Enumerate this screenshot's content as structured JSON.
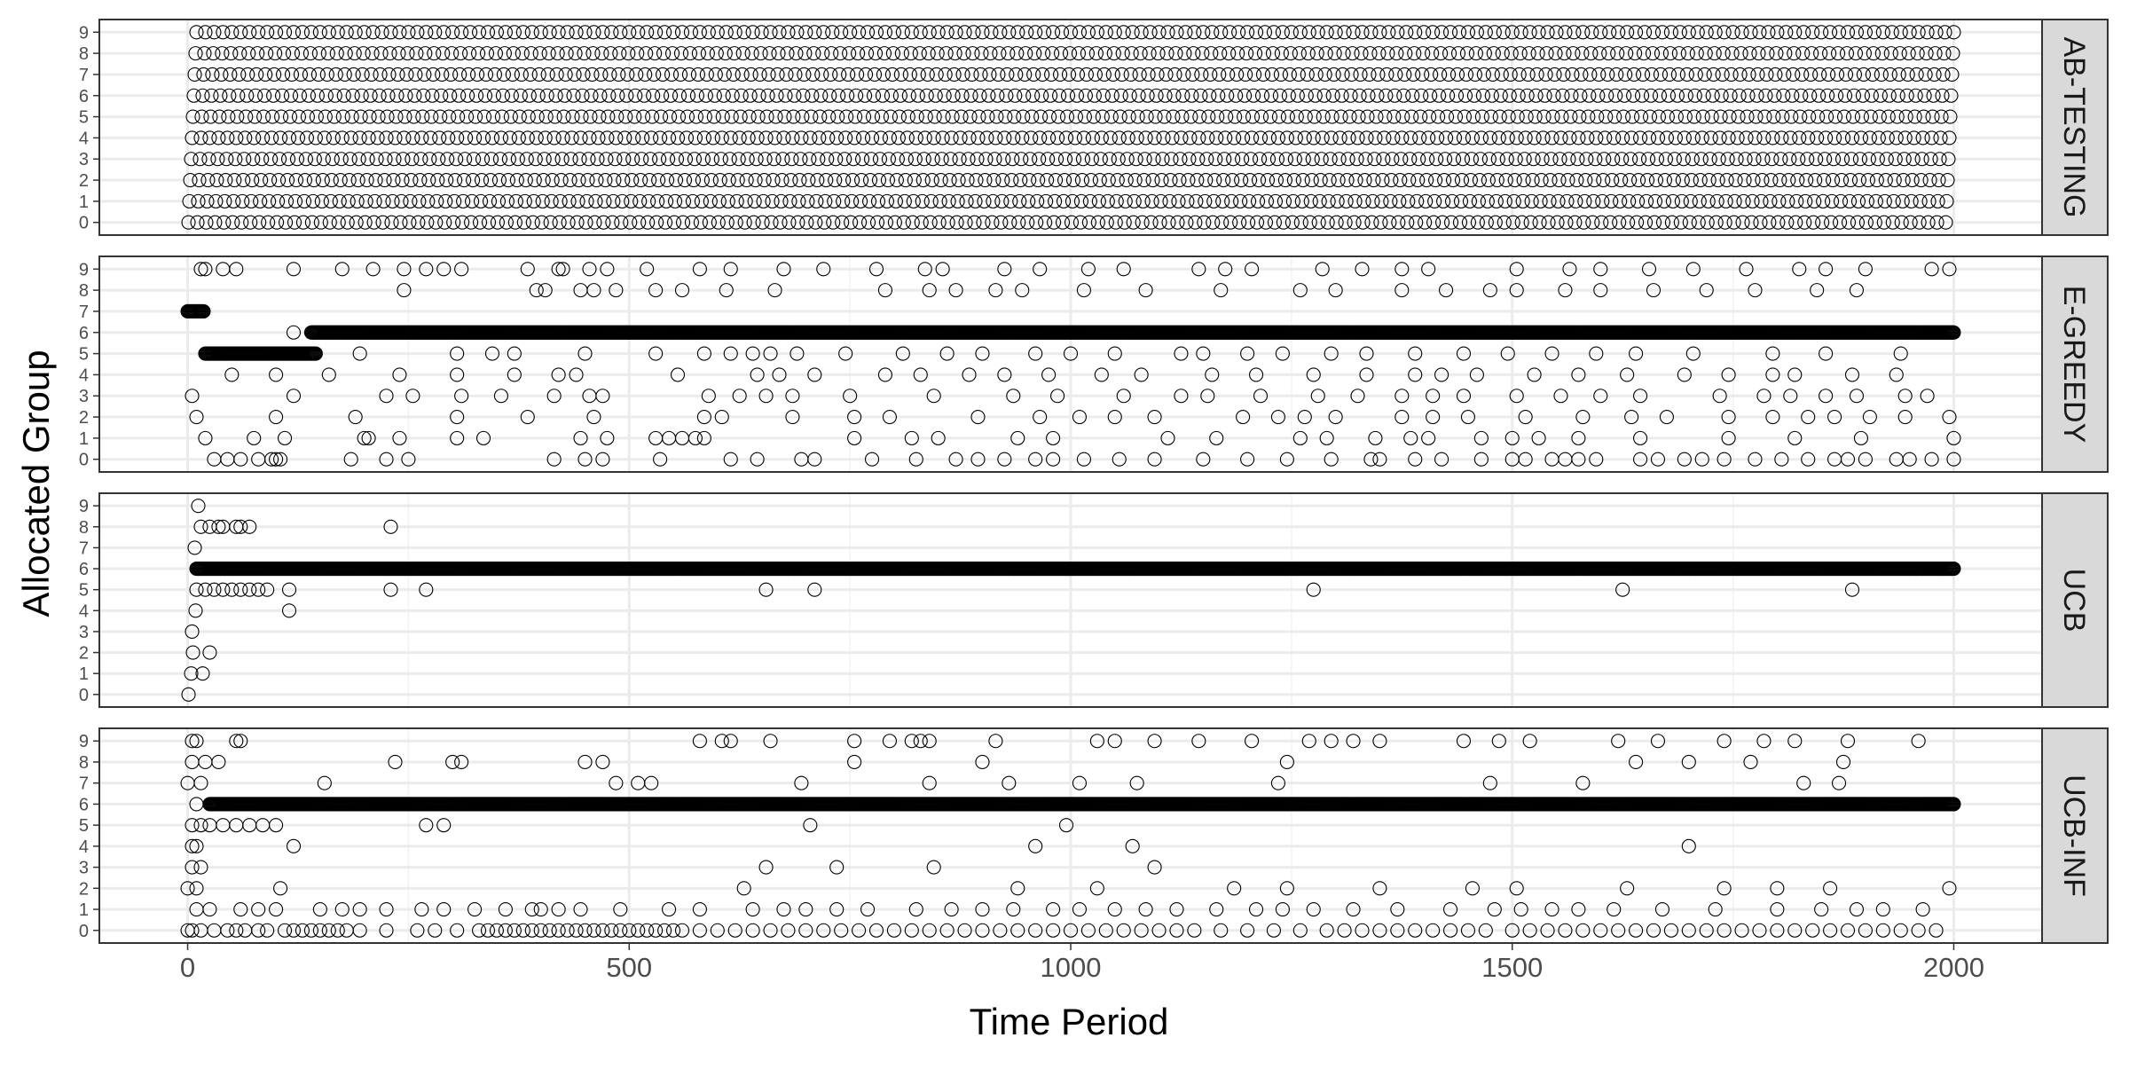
{
  "chart_data": {
    "type": "scatter",
    "title": "",
    "xlabel": "Time Period",
    "ylabel": "Allocated Group",
    "xlim": [
      -100,
      2100
    ],
    "ylim": [
      -0.6,
      9.6
    ],
    "x_ticks": [
      0,
      500,
      1000,
      1500,
      2000
    ],
    "y_ticks": [
      0,
      1,
      2,
      3,
      4,
      5,
      6,
      7,
      8,
      9
    ],
    "grid": true,
    "marker": "open-circle",
    "facets": [
      {
        "name": "AB-TESTING",
        "description_points": "uniform round-robin: every group 0-9 sampled at regular intervals from t=1 to t=2000",
        "points": [
          {
            "group": 0,
            "t_start": 1,
            "t_end": 1991,
            "step": 10
          },
          {
            "group": 1,
            "t_start": 2,
            "t_end": 1992,
            "step": 10
          },
          {
            "group": 2,
            "t_start": 3,
            "t_end": 1993,
            "step": 10
          },
          {
            "group": 3,
            "t_start": 4,
            "t_end": 1994,
            "step": 10
          },
          {
            "group": 4,
            "t_start": 5,
            "t_end": 1995,
            "step": 10
          },
          {
            "group": 5,
            "t_start": 6,
            "t_end": 1996,
            "step": 10
          },
          {
            "group": 6,
            "t_start": 7,
            "t_end": 1997,
            "step": 10
          },
          {
            "group": 7,
            "t_start": 8,
            "t_end": 1998,
            "step": 10
          },
          {
            "group": 8,
            "t_start": 9,
            "t_end": 1999,
            "step": 10
          },
          {
            "group": 9,
            "t_start": 10,
            "t_end": 2000,
            "step": 10
          }
        ]
      },
      {
        "name": "E-GREEDY",
        "dense_runs": [
          {
            "group": 7,
            "t_start": 0,
            "t_end": 18
          },
          {
            "group": 5,
            "t_start": 20,
            "t_end": 145
          },
          {
            "group": 6,
            "t_start": 140,
            "t_end": 2000
          }
        ],
        "scattered": {
          "0": [
            30,
            45,
            60,
            80,
            95,
            100,
            105,
            185,
            225,
            250,
            415,
            450,
            470,
            535,
            615,
            645,
            695,
            710,
            775,
            825,
            870,
            895,
            925,
            960,
            980,
            1015,
            1055,
            1095,
            1150,
            1200,
            1245,
            1295,
            1340,
            1350,
            1390,
            1420,
            1465,
            1500,
            1515,
            1545,
            1560,
            1575,
            1595,
            1645,
            1665,
            1695,
            1715,
            1740,
            1775,
            1805,
            1835,
            1865,
            1880,
            1900,
            1935,
            1950,
            1975,
            2000
          ],
          "1": [
            20,
            75,
            110,
            200,
            205,
            240,
            305,
            335,
            445,
            475,
            530,
            545,
            560,
            575,
            585,
            755,
            820,
            850,
            940,
            980,
            1110,
            1165,
            1260,
            1290,
            1345,
            1385,
            1405,
            1465,
            1500,
            1530,
            1575,
            1645,
            1745,
            1820,
            1895,
            2000
          ],
          "2": [
            10,
            100,
            190,
            305,
            385,
            460,
            585,
            605,
            685,
            755,
            795,
            895,
            965,
            1010,
            1050,
            1095,
            1195,
            1235,
            1265,
            1300,
            1375,
            1410,
            1450,
            1515,
            1580,
            1635,
            1675,
            1745,
            1795,
            1835,
            1865,
            1905,
            1945,
            1995
          ],
          "3": [
            5,
            120,
            225,
            255,
            310,
            355,
            415,
            455,
            470,
            590,
            625,
            655,
            685,
            750,
            845,
            935,
            985,
            1060,
            1125,
            1155,
            1215,
            1280,
            1325,
            1375,
            1410,
            1445,
            1505,
            1555,
            1600,
            1645,
            1735,
            1785,
            1815,
            1855,
            1890,
            1945,
            1970
          ],
          "4": [
            50,
            100,
            160,
            240,
            305,
            370,
            420,
            440,
            555,
            645,
            670,
            710,
            790,
            830,
            885,
            925,
            975,
            1035,
            1080,
            1160,
            1210,
            1275,
            1335,
            1390,
            1420,
            1460,
            1525,
            1575,
            1630,
            1695,
            1745,
            1795,
            1820,
            1885,
            1935
          ],
          "5": [
            195,
            305,
            345,
            370,
            450,
            530,
            585,
            615,
            640,
            660,
            690,
            745,
            810,
            860,
            900,
            960,
            1000,
            1050,
            1125,
            1150,
            1200,
            1240,
            1295,
            1335,
            1390,
            1445,
            1495,
            1545,
            1595,
            1640,
            1705,
            1795,
            1855,
            1940
          ],
          "6": [
            120
          ],
          "8": [
            245,
            395,
            405,
            445,
            460,
            485,
            530,
            560,
            610,
            665,
            790,
            840,
            870,
            915,
            945,
            1015,
            1085,
            1170,
            1260,
            1300,
            1375,
            1425,
            1475,
            1505,
            1560,
            1600,
            1660,
            1720,
            1775,
            1845,
            1890
          ],
          "9": [
            15,
            20,
            40,
            55,
            120,
            175,
            210,
            245,
            270,
            290,
            310,
            385,
            420,
            425,
            455,
            475,
            520,
            580,
            615,
            675,
            720,
            780,
            835,
            855,
            925,
            965,
            1020,
            1060,
            1145,
            1175,
            1205,
            1285,
            1330,
            1375,
            1405,
            1505,
            1565,
            1600,
            1655,
            1705,
            1765,
            1825,
            1855,
            1900,
            1975,
            1995
          ]
        }
      },
      {
        "name": "UCB",
        "dense_runs": [
          {
            "group": 6,
            "t_start": 10,
            "t_end": 2000
          }
        ],
        "scattered": {
          "0": [
            1
          ],
          "1": [
            4,
            17
          ],
          "2": [
            6,
            25
          ],
          "3": [
            5
          ],
          "4": [
            9,
            115
          ],
          "5": [
            10,
            20,
            30,
            40,
            50,
            60,
            70,
            80,
            90,
            115,
            230,
            270,
            655,
            710,
            1275,
            1625,
            1885
          ],
          "7": [
            8
          ],
          "8": [
            15,
            25,
            35,
            40,
            55,
            60,
            70,
            230
          ],
          "9": [
            12
          ]
        }
      },
      {
        "name": "UCB-INF",
        "dense_runs": [
          {
            "group": 6,
            "t_start": 25,
            "t_end": 2000
          }
        ],
        "scattered": {
          "0": [
            0,
            5,
            15,
            30,
            45,
            55,
            65,
            80,
            90,
            110,
            120,
            130,
            140,
            150,
            160,
            170,
            180,
            195,
            225,
            260,
            280,
            305,
            330,
            340,
            350,
            360,
            370,
            380,
            390,
            400,
            410,
            420,
            430,
            440,
            450,
            460,
            470,
            480,
            490,
            500,
            510,
            520,
            530,
            540,
            550,
            560,
            580,
            600,
            620,
            640,
            660,
            680,
            700,
            720,
            740,
            760,
            780,
            800,
            820,
            840,
            860,
            880,
            900,
            920,
            940,
            960,
            980,
            1000,
            1020,
            1040,
            1060,
            1080,
            1100,
            1120,
            1140,
            1170,
            1200,
            1230,
            1260,
            1290,
            1310,
            1330,
            1350,
            1370,
            1390,
            1410,
            1430,
            1450,
            1470,
            1500,
            1520,
            1540,
            1560,
            1580,
            1600,
            1620,
            1640,
            1660,
            1680,
            1700,
            1720,
            1740,
            1760,
            1780,
            1800,
            1820,
            1840,
            1860,
            1880,
            1900,
            1920,
            1940,
            1960,
            1980
          ],
          "1": [
            10,
            25,
            60,
            80,
            100,
            150,
            175,
            195,
            225,
            265,
            290,
            325,
            360,
            390,
            400,
            420,
            445,
            490,
            545,
            580,
            640,
            675,
            700,
            735,
            770,
            825,
            865,
            900,
            935,
            980,
            1010,
            1050,
            1085,
            1120,
            1165,
            1210,
            1240,
            1275,
            1320,
            1370,
            1430,
            1480,
            1510,
            1545,
            1575,
            1615,
            1670,
            1730,
            1800,
            1850,
            1890,
            1920,
            1965
          ],
          "2": [
            0,
            10,
            105,
            630,
            940,
            1030,
            1185,
            1245,
            1350,
            1455,
            1505,
            1630,
            1740,
            1800,
            1860,
            1995
          ],
          "3": [
            5,
            15,
            655,
            735,
            845,
            1095
          ],
          "4": [
            5,
            10,
            120,
            960,
            1070,
            1700
          ],
          "5": [
            5,
            15,
            25,
            40,
            55,
            70,
            85,
            100,
            270,
            290,
            705,
            995
          ],
          "6": [
            10
          ],
          "7": [
            0,
            15,
            155,
            485,
            510,
            525,
            695,
            840,
            930,
            1010,
            1075,
            1235,
            1475,
            1580,
            1830,
            1870
          ],
          "8": [
            5,
            20,
            35,
            235,
            300,
            310,
            450,
            470,
            755,
            900,
            1245,
            1640,
            1700,
            1770,
            1875
          ],
          "9": [
            5,
            10,
            55,
            60,
            580,
            605,
            615,
            660,
            755,
            795,
            820,
            830,
            840,
            915,
            1030,
            1050,
            1095,
            1145,
            1205,
            1270,
            1295,
            1320,
            1350,
            1445,
            1485,
            1520,
            1620,
            1665,
            1740,
            1785,
            1820,
            1880,
            1960
          ]
        }
      }
    ]
  }
}
